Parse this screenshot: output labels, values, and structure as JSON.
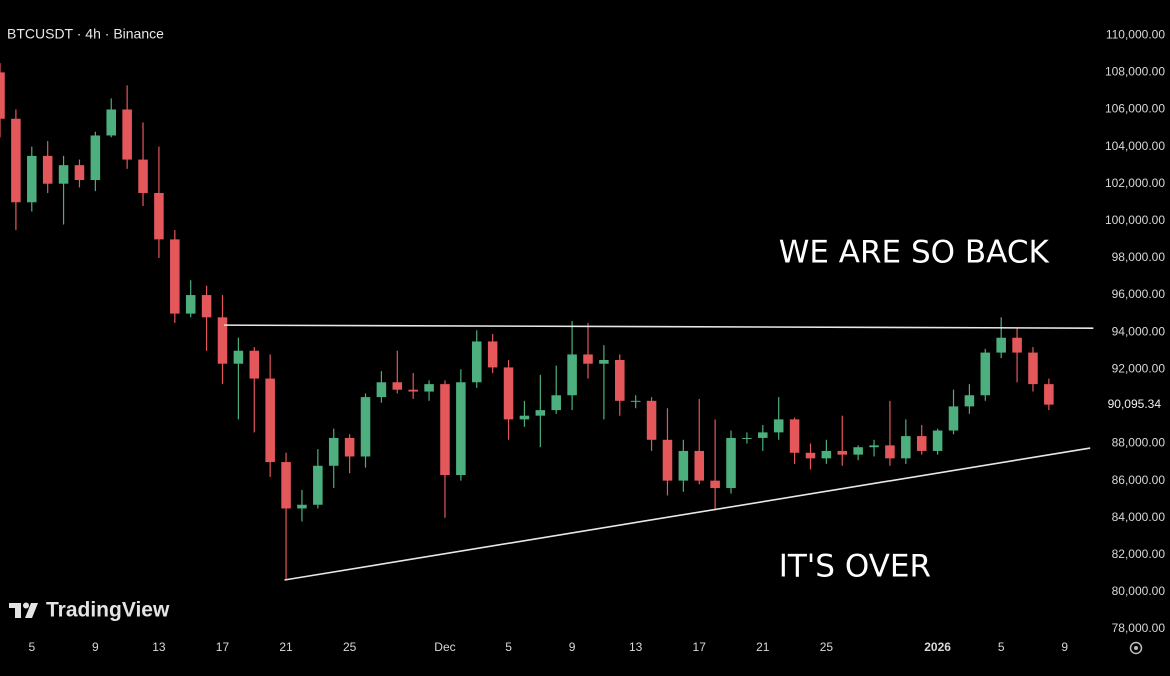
{
  "chart_data": {
    "type": "candlestick",
    "title": "BTCUSDT · 4h · Binance",
    "brand": "TradingView",
    "up_color": "#4caf7d",
    "down_color": "#e4575a",
    "line_color": "#e8e8e8",
    "candles": {
      "open": [
        108000,
        105500,
        101000,
        103500,
        102000,
        103000,
        102200,
        104600,
        106000,
        103300,
        101500,
        99000,
        95000,
        96000,
        94800,
        92300,
        93000,
        91500,
        87000,
        84500,
        84700,
        86800,
        88300,
        87300,
        90500,
        91300,
        90900,
        90800,
        91200,
        86300,
        91300,
        93500,
        92100,
        89300,
        89500,
        89800,
        90600,
        92800,
        92300,
        92500,
        90300,
        90300,
        88200,
        86000,
        87600,
        86000,
        85600,
        88300,
        88300,
        88600,
        89300,
        87500,
        87200,
        87600,
        87400,
        87800,
        87900,
        87200,
        88400,
        87600,
        88700,
        90000,
        90600,
        92900,
        93700,
        92900,
        91200
      ],
      "high": [
        108500,
        106000,
        104000,
        104300,
        103500,
        103300,
        104800,
        106600,
        107300,
        105300,
        104000,
        99500,
        96800,
        96500,
        96000,
        93700,
        93200,
        92800,
        87500,
        85500,
        87700,
        88800,
        88500,
        90700,
        91900,
        93000,
        91800,
        91400,
        91400,
        92000,
        94100,
        93900,
        92500,
        90300,
        91700,
        92200,
        94600,
        94500,
        93300,
        92800,
        90600,
        90500,
        89900,
        88200,
        90400,
        89300,
        88700,
        88600,
        89000,
        90500,
        89400,
        88000,
        88200,
        89500,
        87900,
        88200,
        90300,
        89300,
        89000,
        88800,
        90900,
        91200,
        93100,
        94800,
        94200,
        93200,
        91500
      ],
      "low": [
        104500,
        99500,
        100500,
        101500,
        99800,
        101800,
        101600,
        104500,
        102800,
        100800,
        98000,
        94500,
        94800,
        93000,
        91200,
        89300,
        88600,
        86200,
        80700,
        83800,
        84500,
        85600,
        86400,
        86700,
        90200,
        90700,
        90400,
        90300,
        84000,
        86000,
        91000,
        91800,
        88200,
        88900,
        87800,
        89600,
        89800,
        91500,
        89300,
        89500,
        89900,
        87600,
        85200,
        85400,
        85800,
        84400,
        85300,
        88000,
        87600,
        88200,
        86900,
        86600,
        86900,
        86800,
        87100,
        87300,
        86800,
        86900,
        87400,
        87400,
        88500,
        89600,
        90300,
        92600,
        91300,
        90800,
        89800
      ],
      "close": [
        105500,
        101000,
        103500,
        102000,
        103000,
        102200,
        104600,
        106000,
        103300,
        101500,
        99000,
        95000,
        96000,
        94800,
        92300,
        93000,
        91500,
        87000,
        84500,
        84700,
        86800,
        88300,
        87300,
        90500,
        91300,
        90900,
        90800,
        91200,
        86300,
        91300,
        93500,
        92100,
        89300,
        89500,
        89800,
        90600,
        92800,
        92300,
        92500,
        90300,
        90300,
        88200,
        86000,
        87600,
        86000,
        85600,
        88300,
        88300,
        88600,
        89300,
        87500,
        87200,
        87600,
        87400,
        87800,
        87900,
        87200,
        88400,
        87600,
        88700,
        90000,
        90600,
        92900,
        93700,
        92900,
        91200,
        90095.34
      ]
    },
    "last_price": {
      "value": 90095.34,
      "label": "90,095.34"
    },
    "xlim": [
      0,
      68.4
    ],
    "xticks": [
      {
        "value": 2,
        "label": "5"
      },
      {
        "value": 6,
        "label": "9"
      },
      {
        "value": 10,
        "label": "13"
      },
      {
        "value": 14,
        "label": "17"
      },
      {
        "value": 18,
        "label": "21"
      },
      {
        "value": 22,
        "label": "25"
      },
      {
        "value": 28,
        "label": "Dec"
      },
      {
        "value": 32,
        "label": "5"
      },
      {
        "value": 36,
        "label": "9"
      },
      {
        "value": 40,
        "label": "13"
      },
      {
        "value": 44,
        "label": "17"
      },
      {
        "value": 48,
        "label": "21"
      },
      {
        "value": 52,
        "label": "25"
      },
      {
        "value": 59,
        "label": "2026"
      },
      {
        "value": 63,
        "label": "5"
      },
      {
        "value": 67,
        "label": "9"
      }
    ],
    "ylim": [
      77600,
      111900
    ],
    "yticks": [
      {
        "value": 110000,
        "label": "110,000.00"
      },
      {
        "value": 108000,
        "label": "108,000.00"
      },
      {
        "value": 106000,
        "label": "106,000.00"
      },
      {
        "value": 104000,
        "label": "104,000.00"
      },
      {
        "value": 102000,
        "label": "102,000.00"
      },
      {
        "value": 100000,
        "label": "100,000.00"
      },
      {
        "value": 98000,
        "label": "98,000.00"
      },
      {
        "value": 96000,
        "label": "96,000.00"
      },
      {
        "value": 94000,
        "label": "94,000.00"
      },
      {
        "value": 92000,
        "label": "92,000.00"
      },
      {
        "value": 88000,
        "label": "88,000.00"
      },
      {
        "value": 86000,
        "label": "86,000.00"
      },
      {
        "value": 84000,
        "label": "84,000.00"
      },
      {
        "value": 82000,
        "label": "82,000.00"
      },
      {
        "value": 80000,
        "label": "80,000.00"
      },
      {
        "value": 78000,
        "label": "78,000.00"
      }
    ],
    "trendlines": [
      {
        "x": [
          14.1,
          68.8
        ],
        "y": [
          94379,
          94217
        ]
      },
      {
        "x": [
          17.9,
          68.6
        ],
        "y": [
          80644,
          87754
        ]
      }
    ],
    "annotations": [
      {
        "text": "WE ARE SO BACK",
        "x": 49,
        "y": 98200
      },
      {
        "text": "IT'S OVER",
        "x": 49,
        "y": 81300
      }
    ]
  }
}
